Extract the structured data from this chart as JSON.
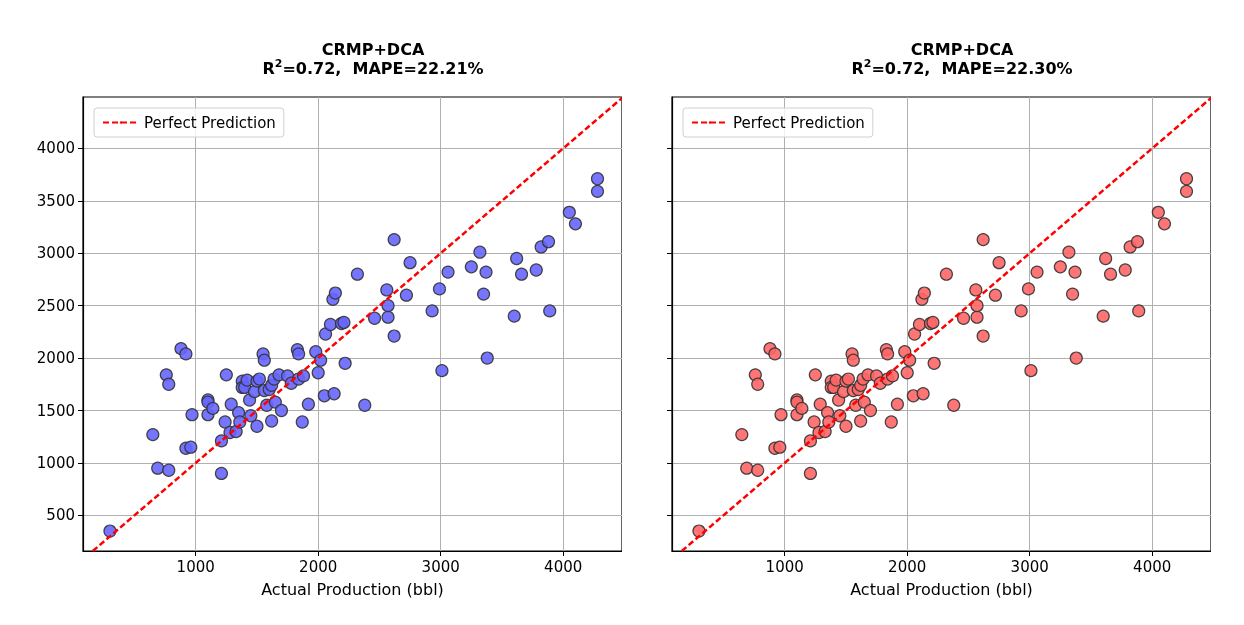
{
  "chart_data": [
    {
      "type": "scatter",
      "title": "CRMP+DCA",
      "subtitle": "R$^{2}$=0.72,  MAPE=22.21%",
      "xlabel": "Actual Production (bbl)",
      "xlim": [
        80,
        4480
      ],
      "ylim": [
        160,
        4490
      ],
      "xticks": [
        1000,
        2000,
        3000,
        4000
      ],
      "yticks": [
        500,
        1000,
        1500,
        2000,
        2500,
        3000,
        3500,
        4000
      ],
      "grid": true,
      "legend": "top left",
      "marker": "circle",
      "series": [
        {
          "color": "#6666ff",
          "x": [
            300,
            650,
            690,
            760,
            780,
            780,
            880,
            920,
            920,
            960,
            970,
            1100,
            1100,
            1100,
            1140,
            1210,
            1210,
            1240,
            1250,
            1280,
            1290,
            1330,
            1350,
            1360,
            1380,
            1380,
            1400,
            1420,
            1440,
            1450,
            1480,
            1500,
            1500,
            1520,
            1550,
            1560,
            1560,
            1580,
            1600,
            1620,
            1620,
            1640,
            1650,
            1680,
            1700,
            1750,
            1780,
            1830,
            1840,
            1840,
            1870,
            1880,
            1920,
            1980,
            2000,
            2020,
            2050,
            2060,
            2100,
            2130,
            2120,
            2140,
            2190,
            2210,
            2220,
            2320,
            2380,
            2460,
            2560,
            2570,
            2570,
            2620,
            2620,
            2720,
            2750,
            2930,
            2990,
            3010,
            3060,
            3250,
            3320,
            3350,
            3370,
            3380,
            3600,
            3620,
            3660,
            3780,
            3820,
            3880,
            3890,
            4050,
            4100,
            4280,
            4280
          ],
          "values": [
            350,
            1270,
            950,
            1840,
            930,
            1750,
            2090,
            2040,
            1140,
            1150,
            1460,
            1600,
            1580,
            1460,
            1520,
            900,
            1210,
            1390,
            1840,
            1290,
            1560,
            1300,
            1480,
            1390,
            1780,
            1720,
            1720,
            1790,
            1600,
            1450,
            1680,
            1350,
            1780,
            1800,
            2040,
            1980,
            1690,
            1550,
            1700,
            1400,
            1740,
            1800,
            1580,
            1840,
            1500,
            1830,
            1760,
            2080,
            2040,
            1800,
            1390,
            1830,
            1560,
            2060,
            1860,
            1980,
            1640,
            2230,
            2320,
            1660,
            2560,
            2620,
            2330,
            2340,
            1950,
            2800,
            1550,
            2380,
            2650,
            2390,
            2500,
            2210,
            3130,
            2600,
            2910,
            2450,
            2660,
            1880,
            2820,
            2870,
            3010,
            2610,
            2820,
            2000,
            2400,
            2950,
            2800,
            2840,
            3060,
            3110,
            2450,
            3390,
            3280,
            3590,
            3710
          ]
        },
        {
          "type": "line",
          "name": "Perfect Prediction",
          "color": "#ff0000",
          "line_style": "dashed",
          "marker": "none",
          "x": [
            160,
            4480
          ],
          "values": [
            160,
            4480
          ]
        }
      ]
    },
    {
      "type": "scatter",
      "title": "CRMP+DCA",
      "subtitle": "R$^{2}$=0.72,  MAPE=22.30%",
      "xlabel": "Actual Production (bbl)",
      "xlim": [
        80,
        4480
      ],
      "ylim": [
        160,
        4490
      ],
      "xticks": [
        1000,
        2000,
        3000,
        4000
      ],
      "yticks": [
        500,
        1000,
        1500,
        2000,
        2500,
        3000,
        3500,
        4000
      ],
      "grid": true,
      "legend": "top left",
      "marker": "circle",
      "tick_labels": "x",
      "series": [
        {
          "color": "#ff6666",
          "x": [
            300,
            650,
            690,
            760,
            780,
            780,
            880,
            920,
            920,
            960,
            970,
            1100,
            1100,
            1100,
            1140,
            1210,
            1210,
            1240,
            1250,
            1280,
            1290,
            1330,
            1350,
            1360,
            1380,
            1380,
            1400,
            1420,
            1440,
            1450,
            1480,
            1500,
            1500,
            1520,
            1550,
            1560,
            1560,
            1580,
            1600,
            1620,
            1620,
            1640,
            1650,
            1680,
            1700,
            1750,
            1780,
            1830,
            1840,
            1840,
            1870,
            1880,
            1920,
            1980,
            2000,
            2020,
            2050,
            2060,
            2100,
            2130,
            2120,
            2140,
            2190,
            2210,
            2220,
            2320,
            2380,
            2460,
            2560,
            2570,
            2570,
            2620,
            2620,
            2720,
            2750,
            2930,
            2990,
            3010,
            3060,
            3250,
            3320,
            3350,
            3370,
            3380,
            3600,
            3620,
            3660,
            3780,
            3820,
            3880,
            3890,
            4050,
            4100,
            4280,
            4280
          ],
          "values": [
            350,
            1270,
            950,
            1840,
            930,
            1750,
            2090,
            2040,
            1140,
            1150,
            1460,
            1600,
            1580,
            1460,
            1520,
            900,
            1210,
            1390,
            1840,
            1290,
            1560,
            1300,
            1480,
            1390,
            1780,
            1720,
            1720,
            1790,
            1600,
            1450,
            1680,
            1350,
            1780,
            1800,
            2040,
            1980,
            1690,
            1550,
            1700,
            1400,
            1740,
            1800,
            1580,
            1840,
            1500,
            1830,
            1760,
            2080,
            2040,
            1800,
            1390,
            1830,
            1560,
            2060,
            1860,
            1980,
            1640,
            2230,
            2320,
            1660,
            2560,
            2620,
            2330,
            2340,
            1950,
            2800,
            1550,
            2380,
            2650,
            2390,
            2500,
            2210,
            3130,
            2600,
            2910,
            2450,
            2660,
            1880,
            2820,
            2870,
            3010,
            2610,
            2820,
            2000,
            2400,
            2950,
            2800,
            2840,
            3060,
            3110,
            2450,
            3390,
            3280,
            3590,
            3710
          ]
        },
        {
          "type": "line",
          "name": "Perfect Prediction",
          "color": "#ff0000",
          "line_style": "dashed",
          "marker": "none",
          "x": [
            160,
            4480
          ],
          "values": [
            160,
            4480
          ]
        }
      ]
    }
  ]
}
